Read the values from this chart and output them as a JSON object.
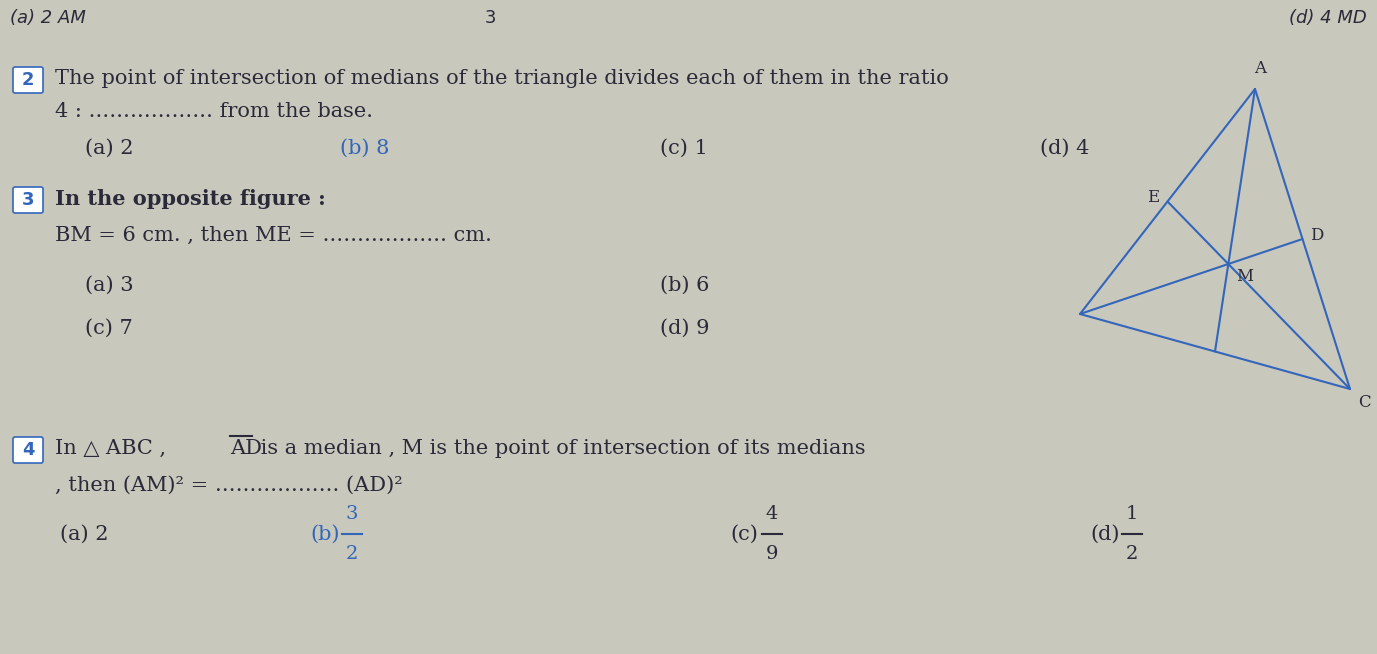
{
  "bg_color": "#c8c8bc",
  "text_color": "#2a2a3a",
  "blue_color": "#3366bb",
  "dark_color": "#2a2a3a",
  "q2_number": "2",
  "q2_text1": "The point of intersection of medians of the triangle divides each of them in the ratio",
  "q2_text2": "4 : ……………… from the base.",
  "q2_a": "(a) 2",
  "q2_b": "(b) 8",
  "q2_c": "(c) 1",
  "q2_d": "(d) 4",
  "q3_number": "3",
  "q3_bold": "In the opposite figure :",
  "q3_text": "BM = 6 cm. , then ME = ……………… cm.",
  "q3_a": "(a) 3",
  "q3_b": "(b) 6",
  "q3_c": "(c) 7",
  "q3_d": "(d) 9",
  "q4_number": "4",
  "q4_text1": "In △ ABC , AD is a median , M is the point of intersection of its medians",
  "q4_text2": ", then (AM)² = ……………… (AD)²",
  "q4_a": "(a) 2",
  "q4_b_num": "3",
  "q4_b_den": "2",
  "q4_c_num": "4",
  "q4_c_den": "9",
  "q4_d_num": "1",
  "q4_d_den": "2",
  "top_label_left": "(a) 2 AM",
  "top_label_mid": "3",
  "top_label_right": "(d) 4 MD"
}
